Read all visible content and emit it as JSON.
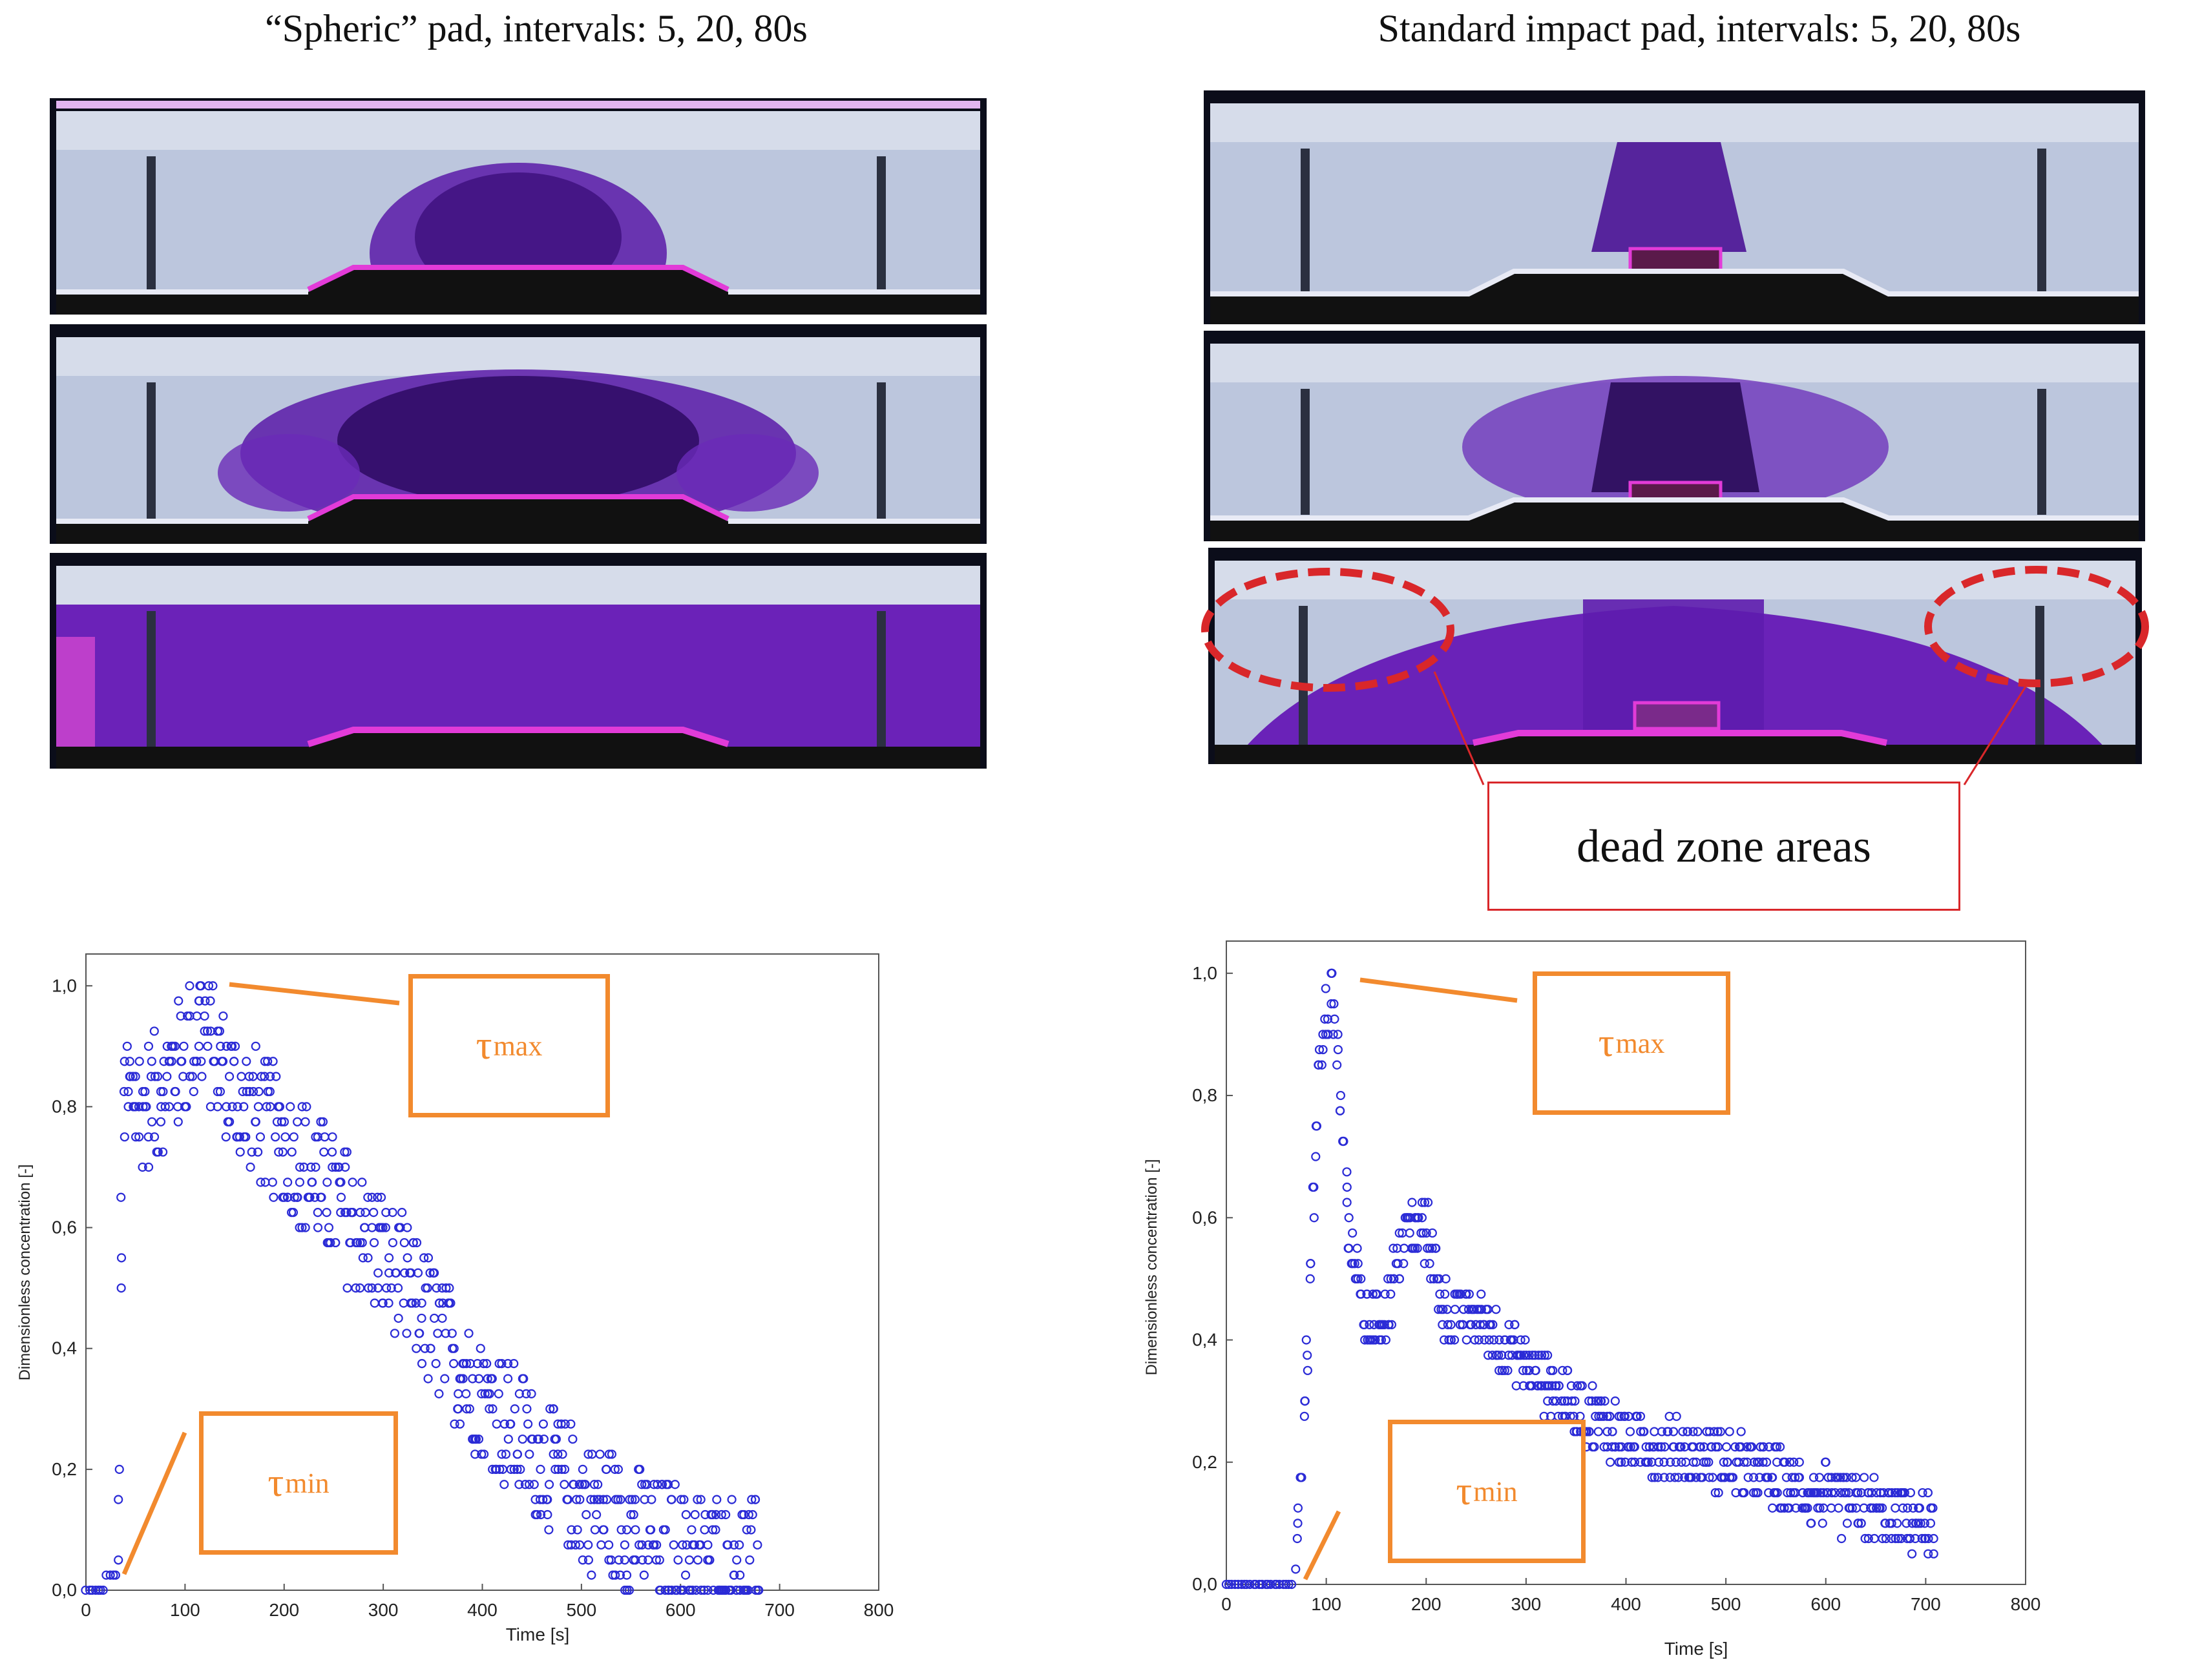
{
  "titles": {
    "left": "“Spheric” pad, intervals: 5, 20, 80s",
    "right": "Standard impact pad, intervals: 5, 20, 80s"
  },
  "annotation": {
    "dead_zone_label": "dead zone areas"
  },
  "markers": {
    "tau_symbol": "τ",
    "tau_max_sub": "max",
    "tau_min_sub": "min"
  },
  "colors": {
    "orange": "#f28a2e",
    "red": "#d9272a",
    "marker": "#2b2bd6",
    "dye": "#5a1aa8",
    "magenta": "#e23bd8"
  },
  "chart_data": [
    {
      "type": "scatter",
      "title": "",
      "xlabel": "Time [s]",
      "ylabel": "Dimensionless concentration [-]",
      "xlim": [
        0,
        800
      ],
      "ylim": [
        0,
        1.0
      ],
      "xticks": [
        "0",
        "100",
        "200",
        "300",
        "400",
        "500",
        "600",
        "700",
        "800"
      ],
      "yticks": [
        "0,0",
        "0,2",
        "0,4",
        "0,6",
        "0,8",
        "1,0"
      ],
      "profile_t": [
        0,
        30,
        33,
        35,
        37,
        40,
        45,
        60,
        80,
        100,
        115,
        150,
        200,
        300,
        400,
        500,
        600,
        680
      ],
      "profile_c": [
        0.0,
        0.02,
        0.1,
        0.45,
        0.7,
        0.82,
        0.82,
        0.8,
        0.84,
        0.88,
        0.94,
        0.82,
        0.74,
        0.55,
        0.32,
        0.15,
        0.06,
        0.04
      ],
      "spread": 0.11,
      "t_end": 680,
      "tau_max_point": [
        115,
        1.0
      ],
      "tau_min_point": [
        33,
        0.0
      ]
    },
    {
      "type": "scatter",
      "title": "",
      "xlabel": "Time [s]",
      "ylabel": "Dimensionless concentration [-]",
      "xlim": [
        0,
        800
      ],
      "ylim": [
        0,
        1.0
      ],
      "xticks": [
        "0",
        "100",
        "200",
        "300",
        "400",
        "500",
        "600",
        "700",
        "800"
      ],
      "yticks": [
        "0,0",
        "0,2",
        "0,4",
        "0,6",
        "0,8",
        "1,0"
      ],
      "profile_t": [
        0,
        68,
        75,
        85,
        95,
        105,
        115,
        125,
        140,
        160,
        180,
        200,
        220,
        250,
        300,
        350,
        400,
        450,
        500,
        550,
        600,
        650,
        710
      ],
      "profile_c": [
        0.0,
        0.0,
        0.15,
        0.55,
        0.88,
        0.98,
        0.75,
        0.55,
        0.42,
        0.45,
        0.58,
        0.58,
        0.44,
        0.44,
        0.36,
        0.29,
        0.24,
        0.22,
        0.2,
        0.17,
        0.14,
        0.12,
        0.09
      ],
      "spread": 0.05,
      "t_end": 710,
      "tau_max_point": [
        105,
        1.0
      ],
      "tau_min_point": [
        70,
        0.0
      ]
    }
  ]
}
